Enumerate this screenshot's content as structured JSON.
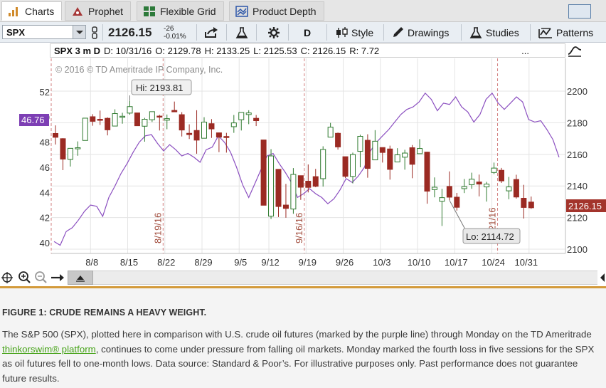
{
  "tabs": [
    {
      "label": "Charts",
      "icon": "bar-chart-icon"
    },
    {
      "label": "Prophet",
      "icon": "prophet-icon"
    },
    {
      "label": "Flexible Grid",
      "icon": "grid-icon"
    },
    {
      "label": "Product Depth",
      "icon": "depth-icon"
    }
  ],
  "toolbar": {
    "symbol": "SPX",
    "price": "2126.15",
    "change": "-26",
    "change_pct": "-0.01%",
    "aggregation": "D",
    "style_label": "Style",
    "drawings_label": "Drawings",
    "studies_label": "Studies",
    "patterns_label": "Patterns"
  },
  "infobar": {
    "symbol": "SPX 3 m D",
    "date": "D: 10/31/16",
    "open": "O: 2129.78",
    "high": "H: 2133.25",
    "low": "L: 2125.53",
    "close": "C: 2126.15",
    "range": "R: 7.72",
    "more": "..."
  },
  "chart_data": {
    "type": "candlestick",
    "copyright": "© 2016 © TD Ameritrade IP Company, Inc.",
    "x_labels": [
      "8/8",
      "8/15",
      "8/22",
      "8/29",
      "9/5",
      "9/12",
      "9/19",
      "9/26",
      "10/3",
      "10/10",
      "10/17",
      "10/24",
      "10/31"
    ],
    "right_axis": {
      "ticks": [
        "2200",
        "2180",
        "2160",
        "2140",
        "2120",
        "2100"
      ],
      "range": [
        2100,
        2210
      ]
    },
    "left_axis": {
      "ticks": [
        "52",
        "50",
        "48",
        "46",
        "44",
        "42",
        "40"
      ],
      "range": [
        39.5,
        52.2
      ]
    },
    "vertical_markers": [
      "8/19/16",
      "9/16/16",
      "10/21/16"
    ],
    "hi_label": "Hi: 2193.81",
    "lo_label": "Lo: 2114.72",
    "oil_last_label": "46.76",
    "spx_last_label": "2126.15",
    "colors": {
      "up": "#2f7a2f",
      "down": "#9b2a23",
      "oil": "#8b4fc0",
      "marker": "#d27f7f"
    },
    "candles": [
      {
        "date": "8/1",
        "o": 2173.2,
        "h": 2178.3,
        "l": 2166.2,
        "c": 2170.8
      },
      {
        "date": "8/2",
        "o": 2169.9,
        "h": 2170.2,
        "l": 2150.0,
        "c": 2157.0
      },
      {
        "date": "8/3",
        "o": 2156.8,
        "h": 2163.8,
        "l": 2152.3,
        "c": 2163.8
      },
      {
        "date": "8/4",
        "o": 2163.5,
        "h": 2168.2,
        "l": 2159.1,
        "c": 2164.2
      },
      {
        "date": "8/5",
        "o": 2168.8,
        "h": 2182.9,
        "l": 2168.8,
        "c": 2182.9
      },
      {
        "date": "8/8",
        "o": 2183.8,
        "h": 2185.4,
        "l": 2178.1,
        "c": 2180.9
      },
      {
        "date": "8/9",
        "o": 2182.2,
        "h": 2187.7,
        "l": 2178.6,
        "c": 2181.7
      },
      {
        "date": "8/10",
        "o": 2182.8,
        "h": 2183.4,
        "l": 2172.0,
        "c": 2175.5
      },
      {
        "date": "8/11",
        "o": 2177.9,
        "h": 2188.5,
        "l": 2177.9,
        "c": 2185.8
      },
      {
        "date": "8/12",
        "o": 2183.7,
        "h": 2186.3,
        "l": 2179.4,
        "c": 2184.1
      },
      {
        "date": "8/15",
        "o": 2186.1,
        "h": 2193.8,
        "l": 2185.1,
        "c": 2190.2
      },
      {
        "date": "8/16",
        "o": 2186.2,
        "h": 2186.2,
        "l": 2178.1,
        "c": 2178.1
      },
      {
        "date": "8/17",
        "o": 2177.8,
        "h": 2183.1,
        "l": 2168.0,
        "c": 2182.2
      },
      {
        "date": "8/18",
        "o": 2181.9,
        "h": 2187.0,
        "l": 2180.5,
        "c": 2187.0
      },
      {
        "date": "8/19",
        "o": 2184.2,
        "h": 2185.0,
        "l": 2175.1,
        "c": 2183.9
      },
      {
        "date": "8/22",
        "o": 2181.6,
        "h": 2185.2,
        "l": 2175.9,
        "c": 2182.6
      },
      {
        "date": "8/23",
        "o": 2187.8,
        "h": 2193.4,
        "l": 2186.8,
        "c": 2186.9
      },
      {
        "date": "8/24",
        "o": 2185.1,
        "h": 2186.7,
        "l": 2171.3,
        "c": 2175.4
      },
      {
        "date": "8/25",
        "o": 2173.3,
        "h": 2179.0,
        "l": 2169.7,
        "c": 2172.5
      },
      {
        "date": "8/26",
        "o": 2175.1,
        "h": 2187.9,
        "l": 2160.4,
        "c": 2169.0
      },
      {
        "date": "8/29",
        "o": 2170.2,
        "h": 2183.5,
        "l": 2170.2,
        "c": 2180.4
      },
      {
        "date": "8/30",
        "o": 2179.4,
        "h": 2182.3,
        "l": 2170.4,
        "c": 2176.1
      },
      {
        "date": "8/31",
        "o": 2173.6,
        "h": 2173.8,
        "l": 2161.4,
        "c": 2170.9
      },
      {
        "date": "9/1",
        "o": 2171.3,
        "h": 2173.6,
        "l": 2161.1,
        "c": 2170.9
      },
      {
        "date": "9/2",
        "o": 2177.5,
        "h": 2184.9,
        "l": 2173.6,
        "c": 2179.9
      },
      {
        "date": "9/6",
        "o": 2181.9,
        "h": 2186.6,
        "l": 2175.1,
        "c": 2186.5
      },
      {
        "date": "9/7",
        "o": 2185.2,
        "h": 2187.9,
        "l": 2179.1,
        "c": 2186.2
      },
      {
        "date": "9/8",
        "o": 2182.8,
        "h": 2184.9,
        "l": 2177.9,
        "c": 2181.3
      },
      {
        "date": "9/9",
        "o": 2169.1,
        "h": 2169.1,
        "l": 2127.8,
        "c": 2127.8
      },
      {
        "date": "9/12",
        "o": 2120.9,
        "h": 2163.3,
        "l": 2119.1,
        "c": 2159.0
      },
      {
        "date": "9/13",
        "o": 2150.5,
        "h": 2150.5,
        "l": 2120.3,
        "c": 2127.0
      },
      {
        "date": "9/14",
        "o": 2127.9,
        "h": 2141.3,
        "l": 2119.9,
        "c": 2125.8
      },
      {
        "date": "9/15",
        "o": 2125.4,
        "h": 2151.3,
        "l": 2122.4,
        "c": 2147.3
      },
      {
        "date": "9/16",
        "o": 2146.5,
        "h": 2146.5,
        "l": 2131.2,
        "c": 2139.2
      },
      {
        "date": "9/19",
        "o": 2143.0,
        "h": 2153.6,
        "l": 2135.9,
        "c": 2139.1
      },
      {
        "date": "9/20",
        "o": 2145.9,
        "h": 2150.8,
        "l": 2139.2,
        "c": 2139.8
      },
      {
        "date": "9/21",
        "o": 2144.6,
        "h": 2165.1,
        "l": 2139.6,
        "c": 2163.1
      },
      {
        "date": "9/22",
        "o": 2170.9,
        "h": 2179.9,
        "l": 2170.9,
        "c": 2177.2
      },
      {
        "date": "9/23",
        "o": 2173.3,
        "h": 2173.8,
        "l": 2163.0,
        "c": 2164.7
      },
      {
        "date": "9/26",
        "o": 2158.5,
        "h": 2158.5,
        "l": 2145.0,
        "c": 2146.1
      },
      {
        "date": "9/27",
        "o": 2146.0,
        "h": 2161.1,
        "l": 2141.6,
        "c": 2159.9
      },
      {
        "date": "9/28",
        "o": 2161.9,
        "h": 2172.4,
        "l": 2151.8,
        "c": 2171.4
      },
      {
        "date": "9/29",
        "o": 2168.9,
        "h": 2172.7,
        "l": 2145.2,
        "c": 2151.1
      },
      {
        "date": "9/30",
        "o": 2156.5,
        "h": 2175.3,
        "l": 2156.5,
        "c": 2168.3
      },
      {
        "date": "10/3",
        "o": 2164.3,
        "h": 2164.4,
        "l": 2154.8,
        "c": 2161.2
      },
      {
        "date": "10/4",
        "o": 2163.4,
        "h": 2165.5,
        "l": 2144.0,
        "c": 2150.5
      },
      {
        "date": "10/5",
        "o": 2155.2,
        "h": 2163.9,
        "l": 2155.2,
        "c": 2159.7
      },
      {
        "date": "10/6",
        "o": 2158.2,
        "h": 2162.9,
        "l": 2150.3,
        "c": 2160.8
      },
      {
        "date": "10/7",
        "o": 2164.2,
        "h": 2165.9,
        "l": 2144.9,
        "c": 2153.7
      },
      {
        "date": "10/10",
        "o": 2160.4,
        "h": 2169.6,
        "l": 2160.4,
        "c": 2163.7
      },
      {
        "date": "10/11",
        "o": 2161.4,
        "h": 2161.6,
        "l": 2128.8,
        "c": 2136.7
      },
      {
        "date": "10/12",
        "o": 2137.7,
        "h": 2145.4,
        "l": 2132.8,
        "c": 2139.2
      },
      {
        "date": "10/13",
        "o": 2130.3,
        "h": 2138.2,
        "l": 2114.7,
        "c": 2132.6
      },
      {
        "date": "10/14",
        "o": 2139.7,
        "h": 2149.2,
        "l": 2131.0,
        "c": 2132.9
      },
      {
        "date": "10/17",
        "o": 2132.9,
        "h": 2135.6,
        "l": 2124.4,
        "c": 2126.5
      },
      {
        "date": "10/18",
        "o": 2138.3,
        "h": 2144.4,
        "l": 2135.5,
        "c": 2139.6
      },
      {
        "date": "10/19",
        "o": 2140.8,
        "h": 2148.4,
        "l": 2138.2,
        "c": 2144.3
      },
      {
        "date": "10/20",
        "o": 2142.5,
        "h": 2147.2,
        "l": 2133.4,
        "c": 2141.2
      },
      {
        "date": "10/21",
        "o": 2139.4,
        "h": 2142.6,
        "l": 2130.1,
        "c": 2141.2
      },
      {
        "date": "10/24",
        "o": 2148.5,
        "h": 2154.8,
        "l": 2147.5,
        "c": 2151.3
      },
      {
        "date": "10/25",
        "o": 2149.9,
        "h": 2151.4,
        "l": 2141.9,
        "c": 2143.2
      },
      {
        "date": "10/26",
        "o": 2136.9,
        "h": 2145.7,
        "l": 2131.6,
        "c": 2139.4
      },
      {
        "date": "10/27",
        "o": 2144.1,
        "h": 2147.1,
        "l": 2132.0,
        "c": 2133.0
      },
      {
        "date": "10/28",
        "o": 2132.2,
        "h": 2140.7,
        "l": 2119.4,
        "c": 2126.4
      },
      {
        "date": "10/31",
        "o": 2129.8,
        "h": 2133.3,
        "l": 2125.5,
        "c": 2126.2
      }
    ],
    "oil": [
      40.1,
      39.8,
      40.9,
      41.2,
      41.8,
      42.5,
      43.0,
      42.9,
      42.1,
      43.6,
      44.5,
      45.5,
      46.3,
      47.2,
      48.0,
      48.5,
      48.6,
      47.9,
      47.3,
      47.8,
      47.4,
      46.9,
      47.1,
      46.8,
      46.4,
      47.4,
      47.6,
      48.5,
      48.0,
      47.2,
      46.0,
      44.6,
      43.6,
      44.7,
      45.8,
      46.9,
      47.1,
      46.3,
      45.6,
      44.8,
      43.6,
      43.9,
      44.3,
      43.9,
      43.6,
      43.1,
      43.5,
      44.2,
      45.1,
      44.8,
      45.3,
      46.0,
      47.3,
      48.0,
      48.5,
      49.0,
      49.6,
      50.2,
      50.6,
      50.8,
      51.2,
      51.9,
      51.4,
      50.5,
      51.1,
      51.0,
      51.6,
      50.8,
      50.4,
      49.6,
      50.2,
      51.4,
      51.9,
      51.1,
      50.6,
      51.1,
      51.6,
      51.2,
      49.8,
      49.6,
      49.7,
      49.0,
      48.2,
      46.8
    ]
  },
  "zoom_icons": [
    "crosshair-icon",
    "zoom-in-icon",
    "zoom-out-icon",
    "arrow-right-icon"
  ],
  "caption": {
    "title": "FIGURE 1: CRUDE REMAINS A HEAVY WEIGHT.",
    "body_before": "The S&P 500 (SPX), plotted here in comparison with U.S. crude oil futures (marked by the purple line) through Monday on the TD Ameritrade ",
    "link": "thinkorswim® platform",
    "body_after": ", continues to come under pressure from falling oil markets. Monday marked the fourth loss in five sessions for the SPX as oil futures fell to one-month lows. Data source: Standard & Poor’s. For illustrative purposes only. Past performance does not guarantee future results."
  }
}
